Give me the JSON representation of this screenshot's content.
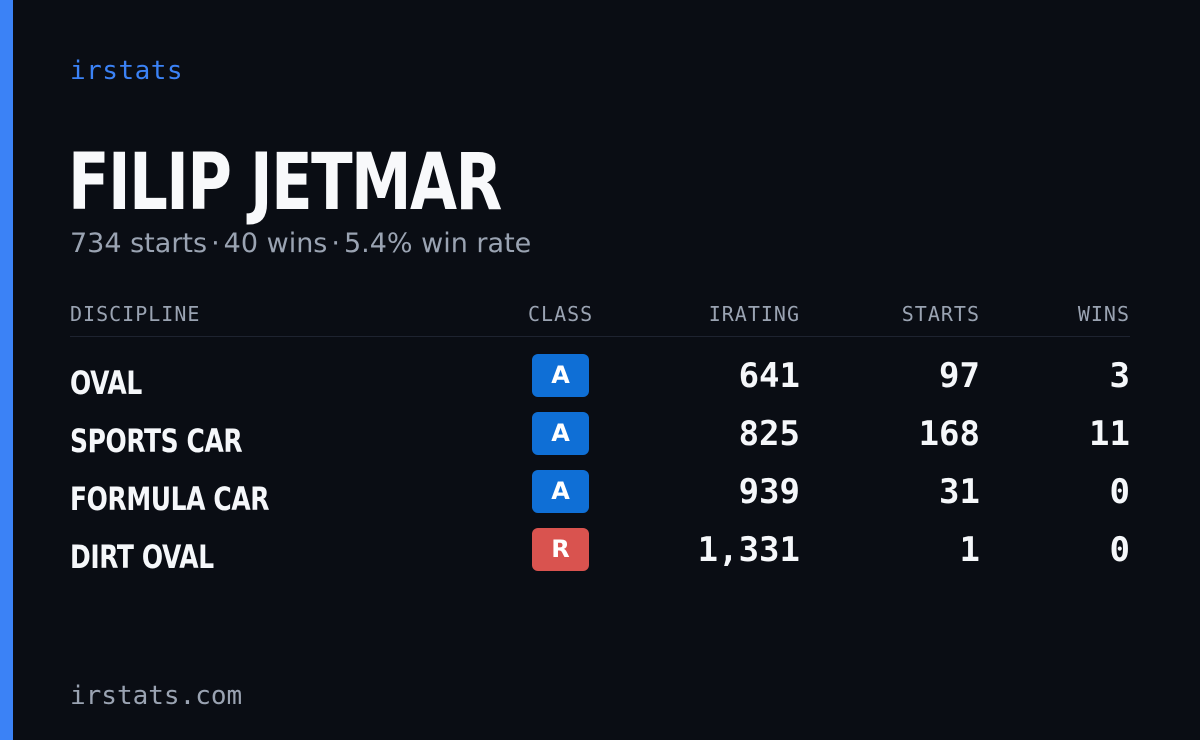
{
  "brand": {
    "label": "irstats",
    "accent_color": "#3b82f6"
  },
  "driver": {
    "name": "FILIP JETMAR",
    "starts_text": "734 starts",
    "wins_text": "40 wins",
    "win_rate_text": "5.4% win rate",
    "separator": "·"
  },
  "table": {
    "headers": {
      "discipline": "DISCIPLINE",
      "class": "CLASS",
      "irating": "IRATING",
      "starts": "STARTS",
      "wins": "WINS"
    },
    "rows": [
      {
        "discipline": "OVAL",
        "class": "A",
        "class_color": "#0f6fd6",
        "irating": "641",
        "starts": "97",
        "wins": "3"
      },
      {
        "discipline": "SPORTS CAR",
        "class": "A",
        "class_color": "#0f6fd6",
        "irating": "825",
        "starts": "168",
        "wins": "11"
      },
      {
        "discipline": "FORMULA CAR",
        "class": "A",
        "class_color": "#0f6fd6",
        "irating": "939",
        "starts": "31",
        "wins": "0"
      },
      {
        "discipline": "DIRT OVAL",
        "class": "R",
        "class_color": "#d9534f",
        "irating": "1,331",
        "starts": "1",
        "wins": "0"
      }
    ]
  },
  "footer": {
    "site": "irstats.com"
  }
}
